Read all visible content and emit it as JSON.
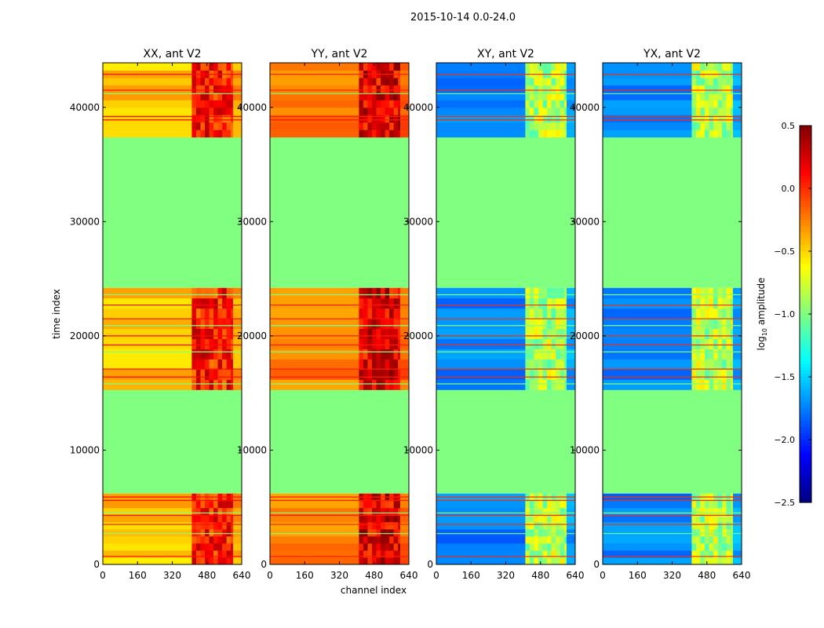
{
  "chart_data": {
    "type": "heatmap",
    "title": "2015-10-14 0.0-24.0",
    "xlabel": "channel index",
    "ylabel": "time index",
    "xlim": [
      0,
      640
    ],
    "ylim": [
      0,
      43900
    ],
    "xticks": [
      "0",
      "160",
      "320",
      "480",
      "640"
    ],
    "yticks": [
      "0",
      "10000",
      "20000",
      "30000",
      "40000"
    ],
    "xtick_values": [
      0,
      160,
      320,
      480,
      640
    ],
    "ytick_values": [
      0,
      10000,
      20000,
      30000,
      40000
    ],
    "colorbar": {
      "label_prefix": "log",
      "label_sub": "10",
      "label_suffix": " amplitude",
      "range": [
        -2.5,
        0.5
      ],
      "ticks": [
        "0.5",
        "0.0",
        "−0.5",
        "−1.0",
        "−1.5",
        "−2.0",
        "−2.5"
      ],
      "tick_values": [
        0.5,
        0.0,
        -0.5,
        -1.0,
        -1.5,
        -2.0,
        -2.5
      ],
      "colormap": "jet"
    },
    "flagged_value": -1.0,
    "flagged_time_ranges": [
      [
        6200,
        15300
      ],
      [
        24200,
        37400
      ]
    ],
    "data_time_ranges": [
      [
        0,
        6200
      ],
      [
        15300,
        24200
      ],
      [
        37400,
        43900
      ]
    ],
    "rfi_channel_range": [
      410,
      600
    ],
    "line_times": [
      700,
      2700,
      3500,
      4300,
      4500,
      5600,
      5900,
      15800,
      16400,
      17100,
      18600,
      19200,
      20000,
      20900,
      21500,
      22700,
      23600,
      38900,
      39200,
      41200,
      41500,
      42900
    ],
    "panels": [
      {
        "title": "XX, ant V2",
        "base_value": -0.45,
        "rfi_value": 0.05,
        "line_value": 0.1
      },
      {
        "title": "YY, ant V2",
        "base_value": -0.25,
        "rfi_value": 0.2,
        "line_value": 0.05
      },
      {
        "title": "XY, ant V2",
        "base_value": -1.75,
        "rfi_value": -0.85,
        "line_value": 0.0
      },
      {
        "title": "YX, ant V2",
        "base_value": -1.75,
        "rfi_value": -0.85,
        "line_value": 0.0
      }
    ]
  }
}
